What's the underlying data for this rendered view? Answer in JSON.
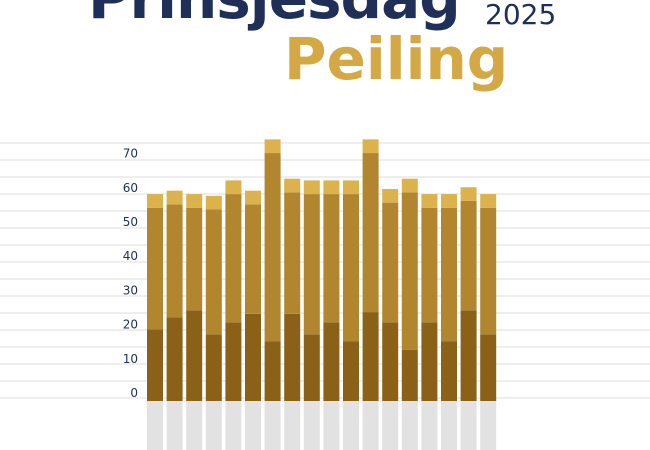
{
  "header": {
    "title": "Prinsjesdag",
    "year": "2025",
    "subtitle": "Peiling"
  },
  "chart_data": {
    "type": "bar",
    "stacked": true,
    "ylim": [
      0,
      75
    ],
    "yticks": [
      0,
      10,
      20,
      30,
      40,
      50,
      60,
      70
    ],
    "grid": true,
    "colors": {
      "dark": "#8b6118",
      "mid": "#b1862e",
      "light": "#dcb24d",
      "gray": "#e2e2e2",
      "grid": "#dddddd"
    },
    "series": [
      {
        "name": "",
        "values": [
          21,
          24.5,
          26.5,
          19.5,
          23,
          25.5,
          17.5,
          25.5,
          19.5,
          23,
          17.5,
          26,
          23,
          15,
          23,
          17.5,
          26.5,
          19.5
        ]
      },
      {
        "name": "",
        "values": [
          35.5,
          33,
          30,
          36.5,
          37.5,
          32,
          55,
          35.5,
          41,
          37.5,
          43,
          46.5,
          35,
          46,
          33.5,
          39,
          32,
          37
        ]
      },
      {
        "name": "",
        "values": [
          4,
          4,
          4,
          4,
          4,
          4,
          4,
          4,
          4,
          4,
          4,
          4,
          4,
          4,
          4,
          4,
          4,
          4
        ]
      }
    ]
  }
}
